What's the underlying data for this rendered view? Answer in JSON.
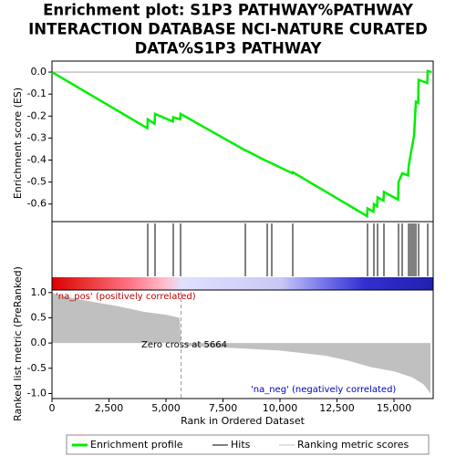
{
  "chart_data": [
    {
      "type": "line",
      "title": [
        "Enrichment plot: S1P3 PATHWAY%PATHWAY",
        "INTERACTION DATABASE NCI-NATURE CURATED",
        "DATA%S1P3 PATHWAY"
      ],
      "ylabel": "Enrichment score (ES)",
      "x": [
        0,
        4180,
        4200,
        4500,
        4520,
        5300,
        5320,
        5620,
        5640,
        8460,
        8480,
        9420,
        9440,
        9640,
        10540,
        10560,
        13820,
        13840,
        14100,
        14120,
        14260,
        14280,
        14540,
        14560,
        15180,
        15200,
        15360,
        15620,
        15640,
        15720,
        15800,
        15880,
        15960,
        16060,
        16080,
        16460,
        16480,
        16640
      ],
      "series": [
        {
          "name": "Enrichment profile",
          "color": "#00ee00",
          "values": [
            0,
            -0.255,
            -0.215,
            -0.235,
            -0.19,
            -0.225,
            -0.205,
            -0.215,
            -0.19,
            -0.355,
            -0.355,
            -0.405,
            -0.405,
            -0.415,
            -0.46,
            -0.455,
            -0.655,
            -0.62,
            -0.635,
            -0.6,
            -0.61,
            -0.57,
            -0.585,
            -0.545,
            -0.58,
            -0.5,
            -0.46,
            -0.47,
            -0.43,
            -0.38,
            -0.335,
            -0.29,
            -0.135,
            -0.14,
            -0.035,
            -0.05,
            0.005,
            0
          ]
        }
      ],
      "xlim": [
        0,
        16720
      ],
      "ylim": [
        -0.68,
        0.05
      ],
      "yticks": [
        {
          "value": 0,
          "label": "0.0"
        },
        -0.1,
        -0.2,
        -0.3,
        -0.4,
        -0.5,
        -0.6
      ]
    },
    {
      "type": "hits",
      "series": [
        {
          "name": "Hits",
          "color": "#000000"
        }
      ],
      "x": [
        4200,
        4520,
        5320,
        5640,
        8480,
        9440,
        9640,
        10560,
        13840,
        14120,
        14280,
        14560,
        15200,
        15360,
        15640,
        15720,
        15800,
        15880,
        15960,
        16080,
        16480
      ],
      "xlim": [
        0,
        16720
      ]
    },
    {
      "type": "area",
      "ylabel": "Ranked list metric (PreRanked)",
      "xlabel": "Rank in Ordered Dataset",
      "x": [
        0,
        300,
        1000,
        2000,
        3000,
        4000,
        5000,
        5600,
        5664,
        6000,
        8000,
        10000,
        12000,
        13000,
        14000,
        15000,
        15800,
        16300,
        16600
      ],
      "series": [
        {
          "name": "Ranking metric scores",
          "color": "#c0c0c0",
          "values": [
            1.0,
            0.95,
            0.88,
            0.8,
            0.72,
            0.62,
            0.56,
            0.5,
            0,
            -0.06,
            -0.1,
            -0.15,
            -0.25,
            -0.35,
            -0.48,
            -0.56,
            -0.68,
            -0.82,
            -1.0
          ]
        }
      ],
      "xlim": [
        0,
        16720
      ],
      "ylim": [
        -1.1,
        1.05
      ],
      "yticks": [
        {
          "value": 1,
          "label": "1.0"
        },
        0.5,
        {
          "value": 0,
          "label": "0.0"
        },
        -0.5,
        {
          "value": -1,
          "label": "-1.0"
        }
      ],
      "xticks": [
        0,
        {
          "value": 2500,
          "label": "2,500"
        },
        {
          "value": 5000,
          "label": "5,000"
        },
        {
          "value": 7500,
          "label": "7,500"
        },
        {
          "value": 10000,
          "label": "10,000"
        },
        {
          "value": 12500,
          "label": "12,500"
        },
        {
          "value": 15000,
          "label": "15,000"
        }
      ],
      "zero_cross": 5664,
      "annotations": [
        "'na_pos' (positively correlated)",
        "Zero cross at 5664",
        "'na_neg' (negatively correlated)"
      ]
    }
  ]
}
